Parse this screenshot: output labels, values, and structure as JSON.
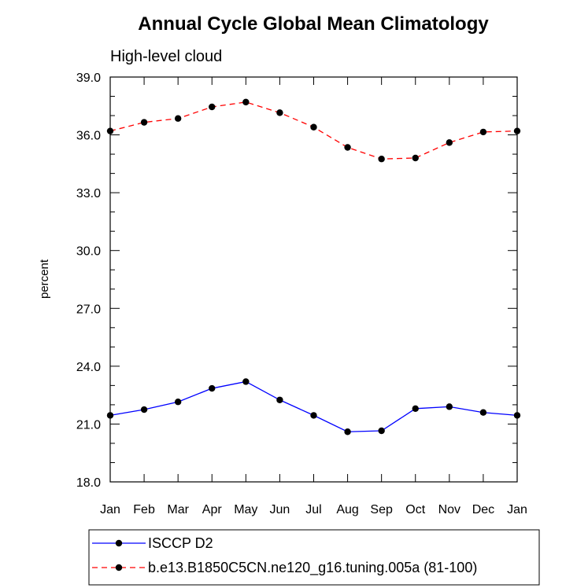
{
  "chart_data": {
    "type": "line",
    "title": "Annual Cycle Global Mean Climatology",
    "subtitle": "High-level cloud",
    "ylabel": "percent",
    "xlabel": "",
    "ylim": [
      18.0,
      39.0
    ],
    "yticks": [
      "18.0",
      "21.0",
      "24.0",
      "27.0",
      "30.0",
      "33.0",
      "36.0",
      "39.0"
    ],
    "categories": [
      "Jan",
      "Feb",
      "Mar",
      "Apr",
      "May",
      "Jun",
      "Jul",
      "Aug",
      "Sep",
      "Oct",
      "Nov",
      "Dec",
      "Jan"
    ],
    "series": [
      {
        "name": "ISCCP D2",
        "color": "#0000ff",
        "style": "solid",
        "values": [
          21.45,
          21.75,
          22.15,
          22.85,
          23.2,
          22.25,
          21.45,
          20.6,
          20.65,
          21.8,
          21.9,
          21.6,
          21.45
        ]
      },
      {
        "name": "b.e13.B1850C5CN.ne120_g16.tuning.005a (81-100)",
        "color": "#ff0000",
        "style": "dashed",
        "values": [
          36.2,
          36.65,
          36.85,
          37.45,
          37.7,
          37.15,
          36.4,
          35.35,
          34.75,
          34.8,
          35.6,
          36.15,
          36.2
        ]
      }
    ],
    "legend_position": "bottom-left"
  }
}
